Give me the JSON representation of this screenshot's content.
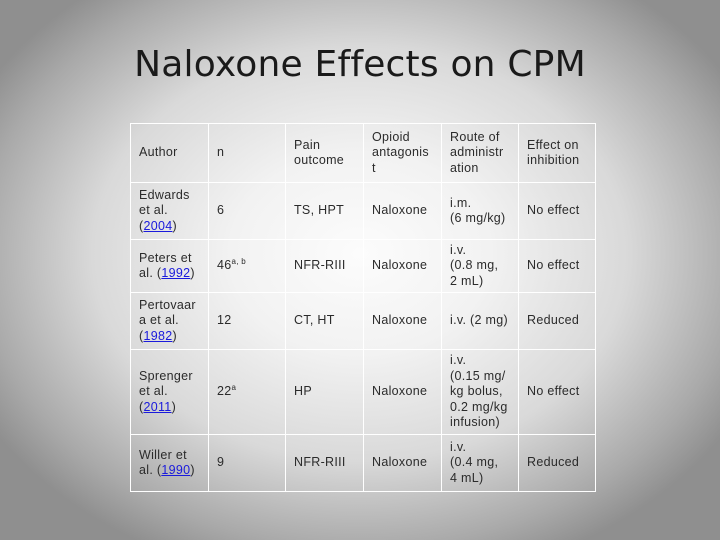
{
  "title": "Naloxone Effects on CPM",
  "table": {
    "headers": [
      {
        "lines": [
          "Author"
        ]
      },
      {
        "lines": [
          "n"
        ]
      },
      {
        "lines": [
          "Pain",
          "outcome"
        ]
      },
      {
        "lines": [
          "Opioid",
          "antagonis",
          "t"
        ]
      },
      {
        "lines": [
          "Route of",
          "administr",
          "ation"
        ]
      },
      {
        "lines": [
          "Effect on",
          "inhibition"
        ]
      }
    ],
    "rows": [
      {
        "author_lines": [
          "Edwards",
          "et al."
        ],
        "year": "2004",
        "year_prefix": "(",
        "year_suffix": ")",
        "year_on_new_line": true,
        "n": "6",
        "n_sup": "",
        "pain_outcome": "TS, HPT",
        "opioid_antagonist": "Naloxone",
        "route_lines": [
          "i.m.",
          "(6 mg/kg)"
        ],
        "effect": "No effect"
      },
      {
        "author_lines": [
          "Peters et",
          "al."
        ],
        "year": "1992",
        "year_prefix": " (",
        "year_suffix": ")",
        "year_on_new_line": false,
        "n": "46",
        "n_sup": "a, b",
        "pain_outcome": "NFR-RIII",
        "opioid_antagonist": "Naloxone",
        "route_lines": [
          "i.v.",
          "(0.8 mg,",
          "2 mL)"
        ],
        "effect": "No effect"
      },
      {
        "author_lines": [
          "Pertovaar",
          "a et al."
        ],
        "year": "1982",
        "year_prefix": "(",
        "year_suffix": ")",
        "year_on_new_line": true,
        "n": "12",
        "n_sup": "",
        "pain_outcome": "CT, HT",
        "opioid_antagonist": "Naloxone",
        "route_lines": [
          "i.v. (2 mg)"
        ],
        "effect": "Reduced"
      },
      {
        "author_lines": [
          "Sprenger",
          "et al."
        ],
        "year": "2011",
        "year_prefix": "(",
        "year_suffix": ")",
        "year_on_new_line": true,
        "n": "22",
        "n_sup": "a",
        "pain_outcome": "HP",
        "opioid_antagonist": "Naloxone",
        "route_lines": [
          "i.v.",
          "(0.15 mg/",
          "kg bolus,",
          "0.2 mg/kg",
          "infusion)"
        ],
        "effect": "No effect"
      },
      {
        "author_lines": [
          "Willer et",
          "al."
        ],
        "year": "1990",
        "year_prefix": " (",
        "year_suffix": ")",
        "year_on_new_line": false,
        "n": "9",
        "n_sup": "",
        "pain_outcome": "NFR-RIII",
        "opioid_antagonist": "Naloxone",
        "route_lines": [
          "i.v.",
          "(0.4 mg,",
          "4 mL)"
        ],
        "effect": "Reduced"
      }
    ]
  },
  "colors": {
    "link": "#1a1adc",
    "text": "#2b2b2b",
    "cell_border": "#ffffff"
  }
}
